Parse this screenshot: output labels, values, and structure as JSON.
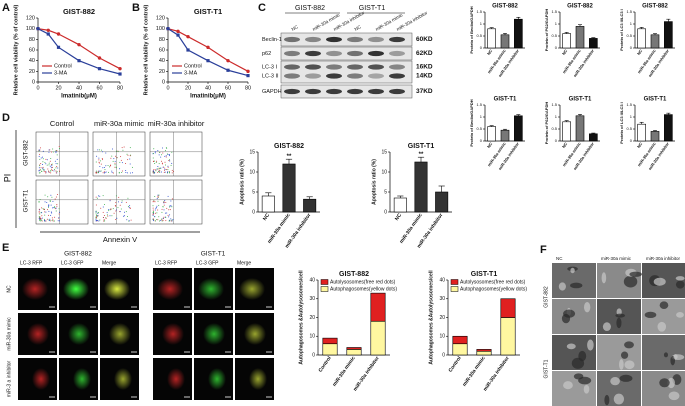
{
  "panel_labels": [
    "A",
    "B",
    "C",
    "D",
    "E",
    "F"
  ],
  "chart_data": [
    {
      "type": "line",
      "title": "GIST-882",
      "x_label": "Imatinib(μM)",
      "y_label": "Relative cell viability (% of control)",
      "x": [
        0,
        10,
        20,
        40,
        60,
        80
      ],
      "xlim": [
        0,
        80
      ],
      "xticks": [
        0,
        20,
        40,
        60,
        80
      ],
      "ylim": [
        0,
        120
      ],
      "yticks": [
        0,
        20,
        40,
        60,
        80,
        100,
        120
      ],
      "legend_position": "lower left",
      "series": [
        {
          "name": "Control",
          "color": "#cc2b2b",
          "values": [
            100,
            97,
            90,
            70,
            45,
            25
          ]
        },
        {
          "name": "3-MA",
          "color": "#2a3f9a",
          "values": [
            100,
            90,
            65,
            40,
            25,
            15
          ]
        }
      ]
    },
    {
      "type": "line",
      "title": "GIST-T1",
      "x_label": "Imatinib(μM)",
      "y_label": "Relative cell viability (% of control)",
      "x": [
        0,
        10,
        20,
        40,
        60,
        80
      ],
      "xlim": [
        0,
        80
      ],
      "xticks": [
        0,
        20,
        40,
        60,
        80
      ],
      "ylim": [
        0,
        120
      ],
      "yticks": [
        0,
        20,
        40,
        60,
        80,
        100,
        120
      ],
      "legend_position": "lower left",
      "series": [
        {
          "name": "Control",
          "color": "#cc2b2b",
          "values": [
            100,
            95,
            85,
            65,
            40,
            20
          ]
        },
        {
          "name": "3-MA",
          "color": "#2a3f9a",
          "values": [
            100,
            88,
            60,
            40,
            22,
            12
          ]
        }
      ]
    },
    {
      "type": "bar",
      "title": "GIST-882",
      "y_label": "Protein of Beclin/GAPDH",
      "categories": [
        "NC",
        "miR-30a mimic",
        "miR-30a inhibitor"
      ],
      "values": [
        0.8,
        0.55,
        1.2
      ],
      "errors": [
        0.05,
        0.06,
        0.08
      ],
      "colors": [
        "#ffffff",
        "#777777",
        "#111111"
      ],
      "ylim": [
        0,
        1.5
      ],
      "yticks": [
        0,
        0.5,
        1,
        1.5
      ]
    },
    {
      "type": "bar",
      "title": "GIST-882",
      "y_label": "Protein of P62/GAPDH",
      "categories": [
        "NC",
        "miR-30a mimic",
        "miR-30a inhibitor"
      ],
      "values": [
        0.6,
        0.9,
        0.4
      ],
      "errors": [
        0.05,
        0.07,
        0.03
      ],
      "colors": [
        "#ffffff",
        "#777777",
        "#111111"
      ],
      "ylim": [
        0,
        1.5
      ],
      "yticks": [
        0,
        0.5,
        1,
        1.5
      ]
    },
    {
      "type": "bar",
      "title": "GIST-882",
      "y_label": "Protein of LC3 II/LC3 I",
      "categories": [
        "NC",
        "miR-30a mimic",
        "miR-30a inhibitor"
      ],
      "values": [
        0.8,
        0.55,
        1.1
      ],
      "errors": [
        0.06,
        0.05,
        0.1
      ],
      "colors": [
        "#ffffff",
        "#777777",
        "#111111"
      ],
      "ylim": [
        0,
        1.5
      ],
      "yticks": [
        0,
        0.5,
        1,
        1.5
      ]
    },
    {
      "type": "bar",
      "title": "GIST-T1",
      "y_label": "Protein of Beclin/GAPDH",
      "categories": [
        "NC",
        "miR-30a mimic",
        "miR-30a inhibitor"
      ],
      "values": [
        0.6,
        0.45,
        1.05
      ],
      "errors": [
        0.04,
        0.04,
        0.05
      ],
      "colors": [
        "#ffffff",
        "#777777",
        "#111111"
      ],
      "ylim": [
        0,
        1.5
      ],
      "yticks": [
        0,
        0.5,
        1,
        1.5
      ]
    },
    {
      "type": "bar",
      "title": "GIST-T1",
      "y_label": "Protein of P62/GAPDH",
      "categories": [
        "NC",
        "miR-30a mimic",
        "miR-30a inhibitor"
      ],
      "values": [
        0.8,
        1.05,
        0.3
      ],
      "errors": [
        0.05,
        0.06,
        0.03
      ],
      "colors": [
        "#ffffff",
        "#777777",
        "#111111"
      ],
      "ylim": [
        0,
        1.5
      ],
      "yticks": [
        0,
        0.5,
        1,
        1.5
      ]
    },
    {
      "type": "bar",
      "title": "GIST-T1",
      "y_label": "Protein of LC3 II/LC3 I",
      "categories": [
        "NC",
        "miR-30a mimic",
        "miR-30a inhibitor"
      ],
      "values": [
        0.7,
        0.4,
        1.1
      ],
      "errors": [
        0.08,
        0.04,
        0.06
      ],
      "colors": [
        "#ffffff",
        "#777777",
        "#111111"
      ],
      "ylim": [
        0,
        1.5
      ],
      "yticks": [
        0,
        0.5,
        1,
        1.5
      ]
    },
    {
      "type": "bar",
      "title": "GIST-882",
      "y_label": "Apoptosis ratio (%)",
      "categories": [
        "NC",
        "miR-30a mimic",
        "miR-30a inhibitor"
      ],
      "values": [
        4,
        12,
        3.2
      ],
      "errors": [
        0.8,
        1.2,
        0.6
      ],
      "colors": [
        "#ffffff",
        "#333333",
        "#333333"
      ],
      "ylim": [
        0,
        15
      ],
      "yticks": [
        0,
        5,
        10,
        15
      ],
      "annotation": "**"
    },
    {
      "type": "bar",
      "title": "GIST-T1",
      "y_label": "Apoptosis ratio (%)",
      "categories": [
        "NC",
        "miR-30a mimic",
        "miR-30a inhibitor"
      ],
      "values": [
        3.5,
        12.5,
        5
      ],
      "errors": [
        0.5,
        1.2,
        1.5
      ],
      "colors": [
        "#ffffff",
        "#333333",
        "#333333"
      ],
      "ylim": [
        0,
        15
      ],
      "yticks": [
        0,
        5,
        10,
        15
      ],
      "annotation": "**"
    },
    {
      "type": "stacked_bar",
      "title": "GIST-882",
      "y_label": "Autophagosomes &Autolysosomes/cell",
      "categories": [
        "Control",
        "miR-30a mimic",
        "miR-30a inhibitor"
      ],
      "ylim": [
        0,
        40
      ],
      "yticks": [
        0,
        10,
        20,
        30,
        40
      ],
      "series": [
        {
          "name": "Autolysosomes(free red dots)",
          "color": "#e02020",
          "values": [
            3,
            1,
            15
          ]
        },
        {
          "name": "Autophagosomes(yellow dots)",
          "color": "#fff7a0",
          "values": [
            6,
            3,
            18
          ]
        }
      ]
    },
    {
      "type": "stacked_bar",
      "title": "GIST-T1",
      "y_label": "Autophagosomes &Autolysosomes/cell",
      "categories": [
        "Control",
        "miR-30a mimic",
        "miR-30a inhibitor"
      ],
      "ylim": [
        0,
        40
      ],
      "yticks": [
        0,
        10,
        20,
        30,
        40
      ],
      "series": [
        {
          "name": "Autolysosomes(free red dots)",
          "color": "#e02020",
          "values": [
            4,
            1,
            10
          ]
        },
        {
          "name": "Autophagosomes(yellow dots)",
          "color": "#fff7a0",
          "values": [
            6,
            2,
            20
          ]
        }
      ]
    }
  ],
  "blot": {
    "groups": [
      "GIST-882",
      "GIST-T1"
    ],
    "lanes": [
      "NC",
      "miR-30a mimic",
      "miR-30a inhibitor",
      "NC",
      "miR-30a mimic",
      "miR-30a inhibitor"
    ],
    "rows": [
      "Beclin-1",
      "p62",
      "LC-3 I",
      "LC-3 II",
      "GAPDH"
    ],
    "sizes": [
      "60KD",
      "62KD",
      "16KD",
      "14KD",
      "37KD"
    ]
  },
  "flow": {
    "columns": [
      "Control",
      "miR-30a mimic",
      "miR-30a inhibitor"
    ],
    "rows": [
      "GIST-882",
      "GIST-T1"
    ],
    "y_axis": "PI",
    "x_axis": "Annexin V"
  },
  "microscopy": {
    "groups": [
      "GIST-882",
      "GIST-T1"
    ],
    "channels": [
      "LC-3 RFP",
      "LC-3 GFP",
      "Merge"
    ],
    "rows": [
      "NC",
      "miR-30a mimic",
      "miR-3 a inhibitor"
    ]
  },
  "em": {
    "columns": [
      "NC",
      "miR-30a mimic",
      "miR-30a inhibitor"
    ],
    "rows": [
      "GIST-882",
      "GIST-T1"
    ]
  }
}
